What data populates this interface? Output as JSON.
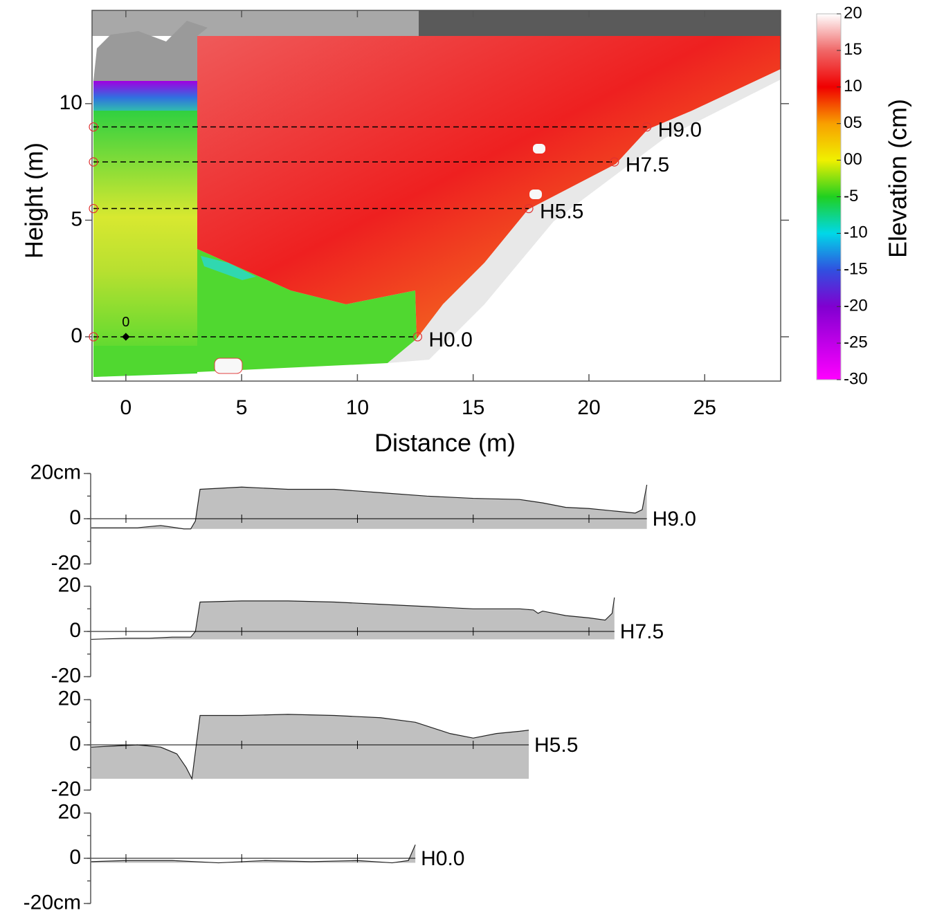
{
  "chart_data": [
    {
      "type": "contour",
      "xlabel": "Distance (m)",
      "ylabel": "Height (m)",
      "xlim": [
        -1.46,
        28.28
      ],
      "ylim": [
        -1.9,
        14.0
      ],
      "xticks": [
        0,
        5,
        10,
        15,
        20,
        25
      ],
      "yticks": [
        0,
        5,
        10
      ],
      "origin_label": "0",
      "transects": [
        {
          "name": "H9.0",
          "height": 9,
          "end": 22.5
        },
        {
          "name": "H7.5",
          "height": 7.5,
          "end": 21.1
        },
        {
          "name": "H5.5",
          "height": 5.5,
          "end": 17.4
        },
        {
          "name": "H0.0",
          "height": 0,
          "end": 12.6
        }
      ],
      "colorbar": {
        "label": "Elevation (cm)",
        "lim": [
          -30,
          20
        ],
        "ticks": [
          20,
          15,
          10,
          {
            "value": 5,
            "label": "05"
          },
          {
            "value": 0,
            "label": "00"
          },
          -5,
          -10,
          -15,
          -20,
          -25,
          -30
        ],
        "colors": [
          "#ffffff",
          "#f06868",
          "#f00000",
          "#f8a000",
          "#f0f000",
          "#20d020",
          "#00d8e8",
          "#3050e0",
          "#8000d0",
          "#c000e8",
          "#ff00ff"
        ]
      }
    },
    {
      "type": "area",
      "name": "H9.0",
      "color": "#c0c0c0",
      "x": [
        -1.5,
        -0.5,
        0.5,
        1.5,
        2.5,
        2.8,
        3.0,
        3.2,
        5,
        7,
        9,
        11,
        13,
        15,
        17,
        18,
        19,
        20,
        21,
        22,
        22.3,
        22.5
      ],
      "values": [
        -4,
        -4,
        -4,
        -3,
        -4.5,
        -4.5,
        -1,
        13,
        14,
        13,
        13,
        11.5,
        10,
        9,
        8.5,
        7,
        5,
        4.5,
        3.5,
        2.5,
        4,
        15
      ],
      "ylim": [
        -20,
        20
      ],
      "yticks": [
        {
          "value": 20,
          "label": "20cm"
        },
        0,
        -20
      ],
      "xticks": [
        0,
        5,
        10,
        15,
        20
      ]
    },
    {
      "type": "area",
      "name": "H7.5",
      "color": "#c0c0c0",
      "x": [
        -1.5,
        0,
        1,
        2,
        2.8,
        3.0,
        3.2,
        5,
        7,
        9,
        11,
        13,
        15,
        17,
        17.6,
        17.8,
        18,
        19,
        20,
        20.7,
        21.0,
        21.1
      ],
      "values": [
        -3.5,
        -3,
        -3,
        -2.5,
        -2.5,
        0,
        13,
        13.5,
        13.5,
        13,
        12,
        11,
        10,
        10,
        9.5,
        8,
        9,
        7,
        6,
        5,
        8,
        15
      ],
      "ylim": [
        -20,
        20
      ],
      "yticks": [
        20,
        0,
        -20
      ],
      "xticks": [
        0,
        5,
        10,
        15,
        20
      ]
    },
    {
      "type": "area",
      "name": "H5.5",
      "color": "#c0c0c0",
      "x": [
        -1.5,
        -0.5,
        0.5,
        1.5,
        2.2,
        2.6,
        2.85,
        3.0,
        3.2,
        5,
        7,
        9,
        11,
        12.5,
        14,
        15,
        16,
        17,
        17.4
      ],
      "values": [
        -1,
        -0.5,
        0,
        -1,
        -4,
        -10,
        -15,
        -3,
        13,
        13,
        13.5,
        13,
        12,
        10,
        5,
        3,
        5,
        6,
        6.5
      ],
      "ylim": [
        -20,
        20
      ],
      "yticks": [
        20,
        0,
        -20
      ],
      "xticks": [
        0,
        5,
        10,
        15,
        20
      ]
    },
    {
      "type": "area",
      "name": "H0.0",
      "color": "#c0c0c0",
      "x": [
        -1.5,
        0,
        2,
        4,
        6,
        8,
        10,
        11.5,
        12.2,
        12.5
      ],
      "values": [
        -1.5,
        -1,
        -1,
        -2,
        -1,
        -1.5,
        -1,
        -2,
        -1,
        6
      ],
      "ylim": [
        -20,
        20
      ],
      "yticks": [
        20,
        0,
        {
          "value": -20,
          "label": "-20cm"
        }
      ],
      "xticks": [
        0,
        5,
        10,
        15,
        20
      ]
    }
  ]
}
